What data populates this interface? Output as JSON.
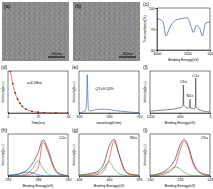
{
  "chart_data": [
    {
      "type": "image",
      "title": "(a)",
      "scale_bar": "200nm"
    },
    {
      "type": "image",
      "title": "(b)",
      "scale_bar": "200nm"
    },
    {
      "type": "line",
      "title": "(c)",
      "x_label": "Binding Energy(eV)",
      "y_label": "Transmittance(%)",
      "x": [
        4000,
        3600,
        3400,
        3200,
        3000,
        2800,
        2400,
        2000,
        1700,
        1600,
        1400,
        1200,
        1000,
        800,
        500
      ],
      "xlim": [
        4000,
        500
      ],
      "xticks": [
        4000,
        2000,
        500
      ],
      "ylim": [
        40,
        100
      ],
      "yticks": [
        40,
        70,
        100
      ],
      "series": [
        {
          "color": "#1f3b7a",
          "values": [
            85,
            80,
            60,
            70,
            78,
            82,
            85,
            86,
            70,
            65,
            75,
            72,
            60,
            78,
            80
          ]
        }
      ]
    },
    {
      "type": "line",
      "title": "(d)",
      "x_label": "Time(ns)",
      "y_label": "Intensity(a.u.)",
      "tick_labels": "x",
      "x": [
        0,
        2,
        4,
        6,
        8,
        10,
        12,
        15,
        20,
        25,
        30,
        40,
        50
      ],
      "xlim": [
        0,
        50
      ],
      "xticks": [
        0,
        25,
        50
      ],
      "ylim": [
        0,
        1000
      ],
      "series": [
        {
          "type": "scatter",
          "marker": "circle",
          "color": "#222222",
          "values": [
            0,
            1000,
            700,
            480,
            330,
            230,
            160,
            90,
            40,
            18,
            9,
            3,
            1
          ]
        },
        {
          "type": "line",
          "color": "#e02020",
          "values": [
            null,
            1000,
            690,
            470,
            320,
            225,
            155,
            88,
            38,
            17,
            8,
            3,
            1
          ]
        }
      ],
      "annotations": [
        {
          "text": "τ=4.18ns",
          "x": 22,
          "y": 700
        }
      ]
    },
    {
      "type": "line",
      "title": "(e)",
      "x_label": "wavelength(nm)",
      "y_label": "Intensity(a.u.)",
      "tick_labels": "x",
      "x": [
        300,
        320,
        340,
        350,
        355,
        360,
        365,
        370,
        380,
        400,
        450,
        500,
        550,
        600,
        650,
        700
      ],
      "xlim": [
        300,
        700
      ],
      "xticks": [
        300,
        500,
        700
      ],
      "ylim": [
        0,
        110
      ],
      "series": [
        {
          "color": "#1f4fb5",
          "values": [
            0,
            2,
            5,
            20,
            100,
            30,
            8,
            5,
            6,
            8,
            10,
            9,
            6,
            4,
            2,
            1
          ]
        }
      ],
      "annotations": [
        {
          "text": "QY=9.14%",
          "x": 470,
          "y": 60
        }
      ]
    },
    {
      "type": "line",
      "title": "(f)",
      "x_label": "Binding Energy(eV)",
      "y_label": "Intensity(a.u.)",
      "tick_labels": "x",
      "x": [
        1200,
        1000,
        800,
        700,
        600,
        540,
        532,
        525,
        450,
        410,
        400,
        390,
        320,
        290,
        285,
        280,
        200,
        0
      ],
      "xlim": [
        1200,
        0
      ],
      "xticks": [
        1200,
        600,
        0
      ],
      "ylim": [
        0,
        120
      ],
      "series": [
        {
          "color": "#333333",
          "values": [
            5,
            8,
            10,
            12,
            15,
            20,
            80,
            22,
            14,
            15,
            40,
            14,
            12,
            20,
            100,
            18,
            8,
            3
          ]
        }
      ],
      "annotations": [
        {
          "text": "C1s",
          "x": 285,
          "y": 104
        },
        {
          "text": "N1s",
          "x": 400,
          "y": 45
        },
        {
          "text": "O1s",
          "x": 532,
          "y": 85
        }
      ]
    },
    {
      "type": "line",
      "title": "(h)",
      "label": "C1s",
      "x_label": "Binding Energy(eV)",
      "y_label": "Intensity(a.u.)",
      "tick_labels": "x",
      "x": [
        292,
        290,
        289,
        288,
        287,
        286,
        285,
        284,
        283,
        282,
        281,
        280
      ],
      "xlim": [
        292,
        280
      ],
      "xticks": [
        292,
        286,
        280
      ],
      "ylim": [
        0,
        110
      ],
      "series": [
        {
          "color": "#222222",
          "values": [
            2,
            5,
            10,
            18,
            35,
            60,
            95,
            70,
            30,
            8,
            3,
            1
          ]
        },
        {
          "color": "#e02020",
          "values": [
            0,
            0,
            1,
            3,
            8,
            20,
            88,
            62,
            25,
            6,
            2,
            0
          ]
        },
        {
          "color": "#20a040",
          "values": [
            0,
            1,
            3,
            8,
            22,
            40,
            20,
            5,
            1,
            0,
            0,
            0
          ]
        },
        {
          "color": "#2050d0",
          "values": [
            1,
            4,
            8,
            10,
            8,
            3,
            1,
            0,
            0,
            0,
            0,
            0
          ]
        }
      ]
    },
    {
      "type": "line",
      "title": "(g)",
      "label": "N1s",
      "x_label": "Binding Energy(eV)",
      "y_label": "Intensity(a.u.)",
      "tick_labels": "x",
      "x": [
        406,
        404,
        402,
        401,
        400,
        399,
        398,
        397,
        396,
        394
      ],
      "xlim": [
        406,
        394
      ],
      "xticks": [
        406,
        400,
        394
      ],
      "ylim": [
        0,
        115
      ],
      "series": [
        {
          "color": "#222222",
          "values": [
            3,
            6,
            15,
            35,
            80,
            100,
            60,
            20,
            6,
            2
          ]
        },
        {
          "color": "#e02020",
          "values": [
            0,
            1,
            5,
            15,
            45,
            95,
            58,
            18,
            5,
            1
          ]
        },
        {
          "color": "#20a040",
          "values": [
            1,
            4,
            10,
            22,
            40,
            20,
            6,
            2,
            0,
            0
          ]
        }
      ]
    },
    {
      "type": "line",
      "title": "(i)",
      "label": "O1s",
      "x_label": "Binding Energy(eV)",
      "y_label": "Intensity(a.u.)",
      "tick_labels": "x",
      "x": [
        540,
        538,
        536,
        534,
        533,
        532,
        531,
        530,
        528,
        526
      ],
      "xlim": [
        540,
        526
      ],
      "xticks": [
        540,
        533,
        526
      ],
      "ylim": [
        0,
        115
      ],
      "series": [
        {
          "color": "#222222",
          "values": [
            2,
            6,
            18,
            50,
            85,
            100,
            80,
            40,
            8,
            2
          ]
        },
        {
          "color": "#e02020",
          "values": [
            0,
            2,
            8,
            30,
            70,
            95,
            75,
            35,
            6,
            1
          ]
        },
        {
          "color": "#20a040",
          "values": [
            1,
            4,
            12,
            25,
            20,
            10,
            4,
            1,
            0,
            0
          ]
        }
      ]
    }
  ]
}
